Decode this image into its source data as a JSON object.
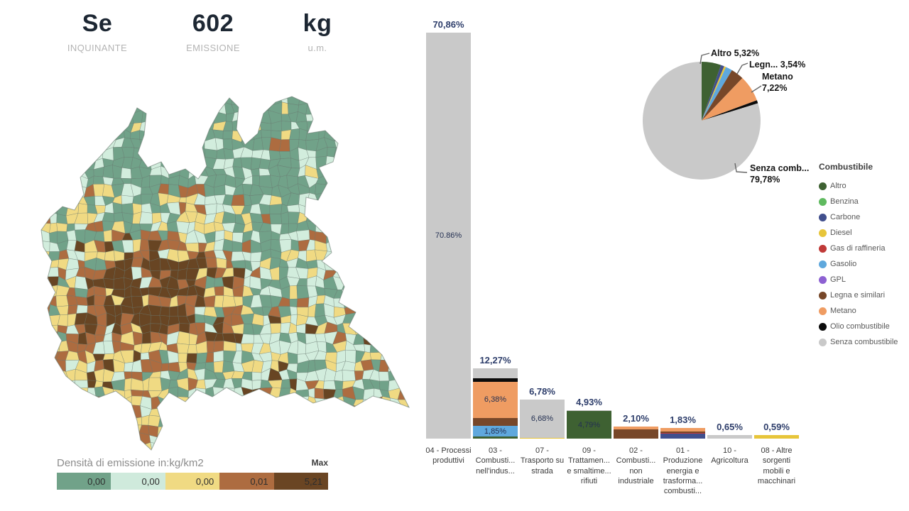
{
  "header": {
    "pollutant_value": "Se",
    "pollutant_label": "INQUINANTE",
    "emission_value": "602",
    "emission_label": "EMISSIONE",
    "unit_value": "kg",
    "unit_label": "u.m."
  },
  "map": {
    "legend_title": "Densità di emissione in:kg/km2",
    "legend_max": "Max",
    "palette": {
      "green": "#71a289",
      "mint": "#d2eddd",
      "yellow": "#f0da83",
      "brown": "#ad6c40",
      "darkbrown": "#684523"
    },
    "legend_bins": [
      {
        "label": "0,00",
        "color": "#71a289"
      },
      {
        "label": "0,00",
        "color": "#cfeadc"
      },
      {
        "label": "0,00",
        "color": "#f0da83"
      },
      {
        "label": "0,01",
        "color": "#ad6c40"
      },
      {
        "label": "5,21",
        "color": "#6a4523"
      }
    ]
  },
  "fuel_colors": {
    "Altro": "#3e6132",
    "Benzina": "#5fba5f",
    "Carbone": "#414f8d",
    "Diesel": "#e7c53a",
    "Gas di raffineria": "#c03a38",
    "Gasolio": "#5fa8dd",
    "GPL": "#8d61d2",
    "Legna e similari": "#774729",
    "Metano": "#ef9c62",
    "Olio combustibile": "#0b0b0b",
    "Senza combustibile": "#c9c9c9"
  },
  "fuel_legend": {
    "title": "Combustibile",
    "items": [
      "Altro",
      "Benzina",
      "Carbone",
      "Diesel",
      "Gas di raffineria",
      "Gasolio",
      "GPL",
      "Legna e similari",
      "Metano",
      "Olio combustibile",
      "Senza combustibile"
    ]
  },
  "chart_data": [
    {
      "type": "bar",
      "stacked": true,
      "unit": "%",
      "ylim": [
        0,
        75
      ],
      "grid": false,
      "value_label_position": "above",
      "categories": [
        "04 - Processi produttivi",
        "03 - Combusti... nell'indus...",
        "07 - Trasporto su strada",
        "09 - Trattamen... e smaltime... rifiuti",
        "02 - Combusti... non industriale",
        "01 - Produzione energia e trasforma... combusti...",
        "10 - Agricoltura",
        "08 - Altre sorgenti mobili e macchinari"
      ],
      "totals": [
        70.86,
        12.27,
        6.78,
        4.93,
        2.1,
        1.83,
        0.65,
        0.59
      ],
      "total_labels": [
        "70,86%",
        "12,27%",
        "6,78%",
        "4,93%",
        "2,10%",
        "1,83%",
        "0,65%",
        "0,59%"
      ],
      "bars": [
        {
          "segments": [
            {
              "fuel": "Senza combustibile",
              "value": 70.86,
              "label": "70.86%"
            }
          ]
        },
        {
          "segments": [
            {
              "fuel": "Altro",
              "value": 0.35
            },
            {
              "fuel": "Gasolio",
              "value": 1.85,
              "label": "1,85%"
            },
            {
              "fuel": "Legna e similari",
              "value": 1.37
            },
            {
              "fuel": "Metano",
              "value": 6.38,
              "label": "6,38%"
            },
            {
              "fuel": "Olio combustibile",
              "value": 0.6
            },
            {
              "fuel": "Senza combustibile",
              "value": 1.72
            }
          ]
        },
        {
          "segments": [
            {
              "fuel": "Diesel",
              "value": 0.1
            },
            {
              "fuel": "Senza combustibile",
              "value": 6.68,
              "label": "6,68%"
            }
          ]
        },
        {
          "segments": [
            {
              "fuel": "Altro",
              "value": 4.79,
              "label": "4,79%"
            },
            {
              "fuel": "Senza combustibile",
              "value": 0.14
            }
          ]
        },
        {
          "segments": [
            {
              "fuel": "Legna e similari",
              "value": 1.6
            },
            {
              "fuel": "Metano",
              "value": 0.5
            }
          ]
        },
        {
          "segments": [
            {
              "fuel": "Carbone",
              "value": 0.9
            },
            {
              "fuel": "Gas di raffineria",
              "value": 0.08
            },
            {
              "fuel": "Legna e similari",
              "value": 0.3
            },
            {
              "fuel": "Metano",
              "value": 0.55
            }
          ]
        },
        {
          "segments": [
            {
              "fuel": "Senza combustibile",
              "value": 0.65
            }
          ]
        },
        {
          "segments": [
            {
              "fuel": "Diesel",
              "value": 0.59
            }
          ]
        }
      ]
    },
    {
      "type": "pie",
      "title": "Combustibile",
      "labels": [
        "Altro",
        "Carbone",
        "Diesel",
        "Gasolio",
        "Legna e similari",
        "Metano",
        "Olio combustibile",
        "Senza combustibile"
      ],
      "values": [
        5.32,
        0.94,
        0.5,
        1.85,
        3.54,
        7.22,
        0.85,
        79.78
      ],
      "start_angle_deg": -90,
      "direction": "clockwise",
      "annotations": [
        {
          "lines": [
            "Altro 5,32%"
          ]
        },
        {
          "lines": [
            "Legn... 3,54%"
          ]
        },
        {
          "lines": [
            "Metano",
            "7,22%"
          ]
        },
        {
          "lines": [
            "Senza comb...",
            "79,78%"
          ]
        }
      ]
    }
  ]
}
